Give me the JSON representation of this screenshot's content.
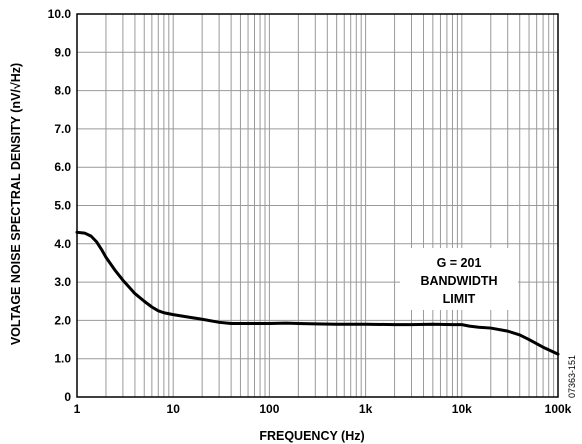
{
  "chart_data": {
    "type": "line",
    "xlabel": "FREQUENCY (Hz)",
    "ylabel": "VOLTAGE NOISE SPECTRAL DENSITY (nV/√Hz)",
    "x_scale": "log",
    "xlim": [
      1,
      100000
    ],
    "ylim": [
      0,
      10
    ],
    "grid": true,
    "x_ticks": [
      1,
      10,
      100,
      1000,
      10000,
      100000
    ],
    "x_tick_labels": [
      "1",
      "10",
      "100",
      "1k",
      "10k",
      "100k"
    ],
    "y_ticks": [
      0,
      1,
      2,
      3,
      4,
      5,
      6,
      7,
      8,
      9,
      10
    ],
    "y_tick_labels": [
      "0",
      "1.0",
      "2.0",
      "3.0",
      "4.0",
      "5.0",
      "6.0",
      "7.0",
      "8.0",
      "9.0",
      "10.0"
    ],
    "series": [
      {
        "x": [
          1,
          1.2,
          1.4,
          1.6,
          1.8,
          2,
          2.5,
          3,
          4,
          5,
          6,
          7,
          8,
          10,
          15,
          20,
          30,
          40,
          50,
          70,
          100,
          150,
          200,
          300,
          500,
          700,
          1000,
          2000,
          3000,
          5000,
          8000,
          10000,
          12000,
          15000,
          20000,
          30000,
          40000,
          50000,
          70000,
          100000
        ],
        "y": [
          4.3,
          4.28,
          4.2,
          4.05,
          3.85,
          3.65,
          3.3,
          3.05,
          2.7,
          2.5,
          2.35,
          2.25,
          2.2,
          2.15,
          2.08,
          2.03,
          1.95,
          1.92,
          1.92,
          1.92,
          1.92,
          1.93,
          1.92,
          1.91,
          1.9,
          1.9,
          1.9,
          1.89,
          1.89,
          1.9,
          1.89,
          1.89,
          1.85,
          1.82,
          1.8,
          1.72,
          1.62,
          1.5,
          1.3,
          1.12
        ]
      }
    ],
    "annotations": [
      "G = 201",
      "BANDWIDTH",
      "LIMIT"
    ],
    "figure_code": "07363-151"
  }
}
